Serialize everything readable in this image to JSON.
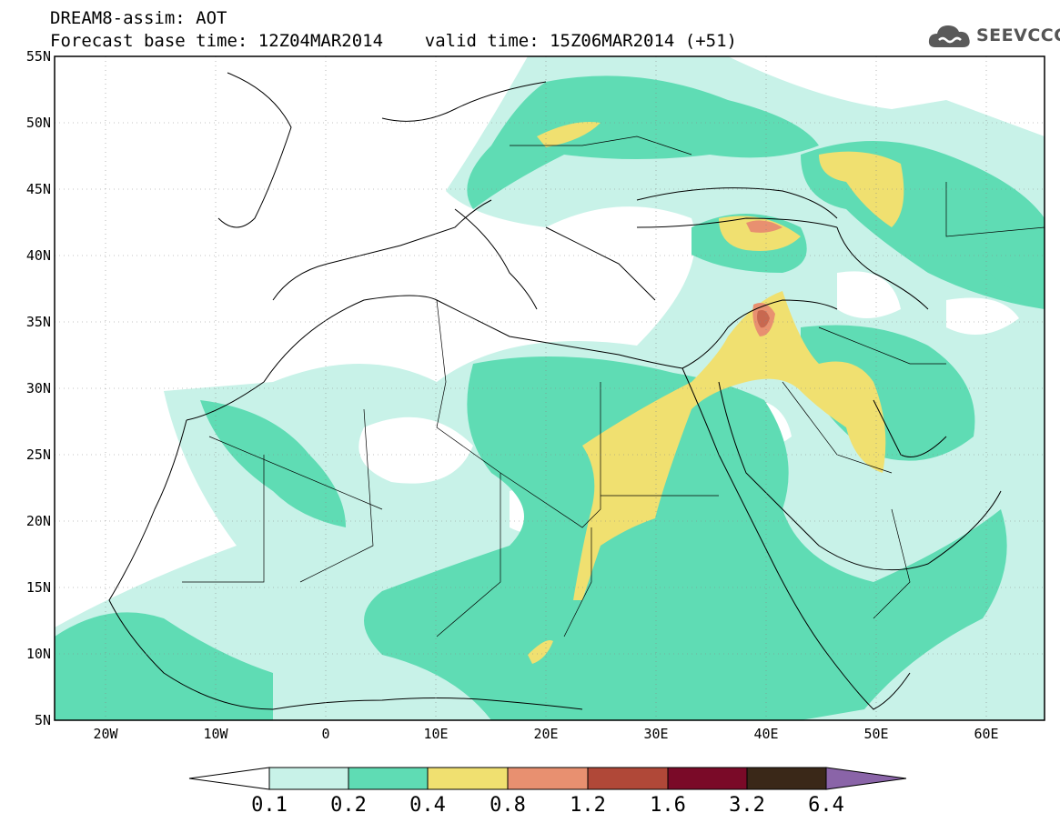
{
  "title": {
    "line1": "DREAM8-assim: AOT",
    "line2": "Forecast base time: 12Z04MAR2014    valid time: 15Z06MAR2014 (+51)"
  },
  "logo": {
    "text": "SEEVCCC",
    "icon": "cloud-icon"
  },
  "map": {
    "lon_range": [
      -25,
      65
    ],
    "lat_range": [
      5,
      55
    ],
    "lat_labels": [
      "55N",
      "50N",
      "45N",
      "40N",
      "35N",
      "30N",
      "25N",
      "20N",
      "15N",
      "10N",
      "5N"
    ],
    "lon_labels": [
      "20W",
      "10W",
      "0",
      "10E",
      "20E",
      "30E",
      "40E",
      "50E",
      "60E"
    ],
    "field": "AOT"
  },
  "colorbar": {
    "labels": [
      "0.1",
      "0.2",
      "0.4",
      "0.8",
      "1.2",
      "1.6",
      "3.2",
      "6.4"
    ],
    "colors": [
      "#ffffff",
      "#c8f2e8",
      "#5fdcb4",
      "#f0e070",
      "#e89070",
      "#b04838",
      "#7a0a28",
      "#3a2818",
      "#8a64a8"
    ]
  },
  "colors": {
    "level_01": "#c8f2e8",
    "level_02": "#5fdcb4",
    "level_04": "#f0e070",
    "level_08": "#e89070",
    "level_12": "#b04838"
  }
}
